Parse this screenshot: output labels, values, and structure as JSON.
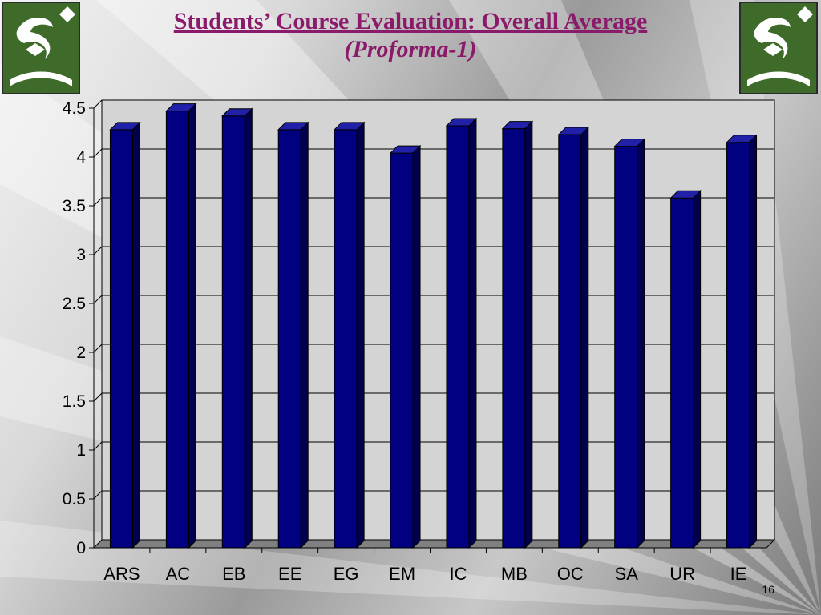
{
  "slide": {
    "title": "Students’ Course Evaluation: Overall Average",
    "subtitle": "(Proforma-1)",
    "page_number": "16"
  },
  "colors": {
    "bar_front": "#000080",
    "bar_side": "#00004d",
    "bar_top": "#2020a8",
    "title": "#8b1a6b",
    "logo_green": "#3f6b2a"
  },
  "icons": {
    "logo_left": "institution-logo-icon",
    "logo_right": "institution-logo-icon"
  },
  "chart_data": {
    "type": "bar",
    "categories": [
      "ARS",
      "AC",
      "EB",
      "EE",
      "EG",
      "EM",
      "IC",
      "MB",
      "OC",
      "SA",
      "UR",
      "IE"
    ],
    "values": [
      4.28,
      4.47,
      4.42,
      4.28,
      4.28,
      4.04,
      4.32,
      4.29,
      4.23,
      4.11,
      3.58,
      4.15
    ],
    "ylim": [
      0,
      4.5
    ],
    "yticks": [
      "0",
      "0.5",
      "1",
      "1.5",
      "2",
      "2.5",
      "3",
      "3.5",
      "4",
      "4.5"
    ],
    "ytick_values": [
      0,
      0.5,
      1,
      1.5,
      2,
      2.5,
      3,
      3.5,
      4,
      4.5
    ],
    "title": "",
    "xlabel": "",
    "ylabel": "",
    "grid": true,
    "legend": "none"
  }
}
